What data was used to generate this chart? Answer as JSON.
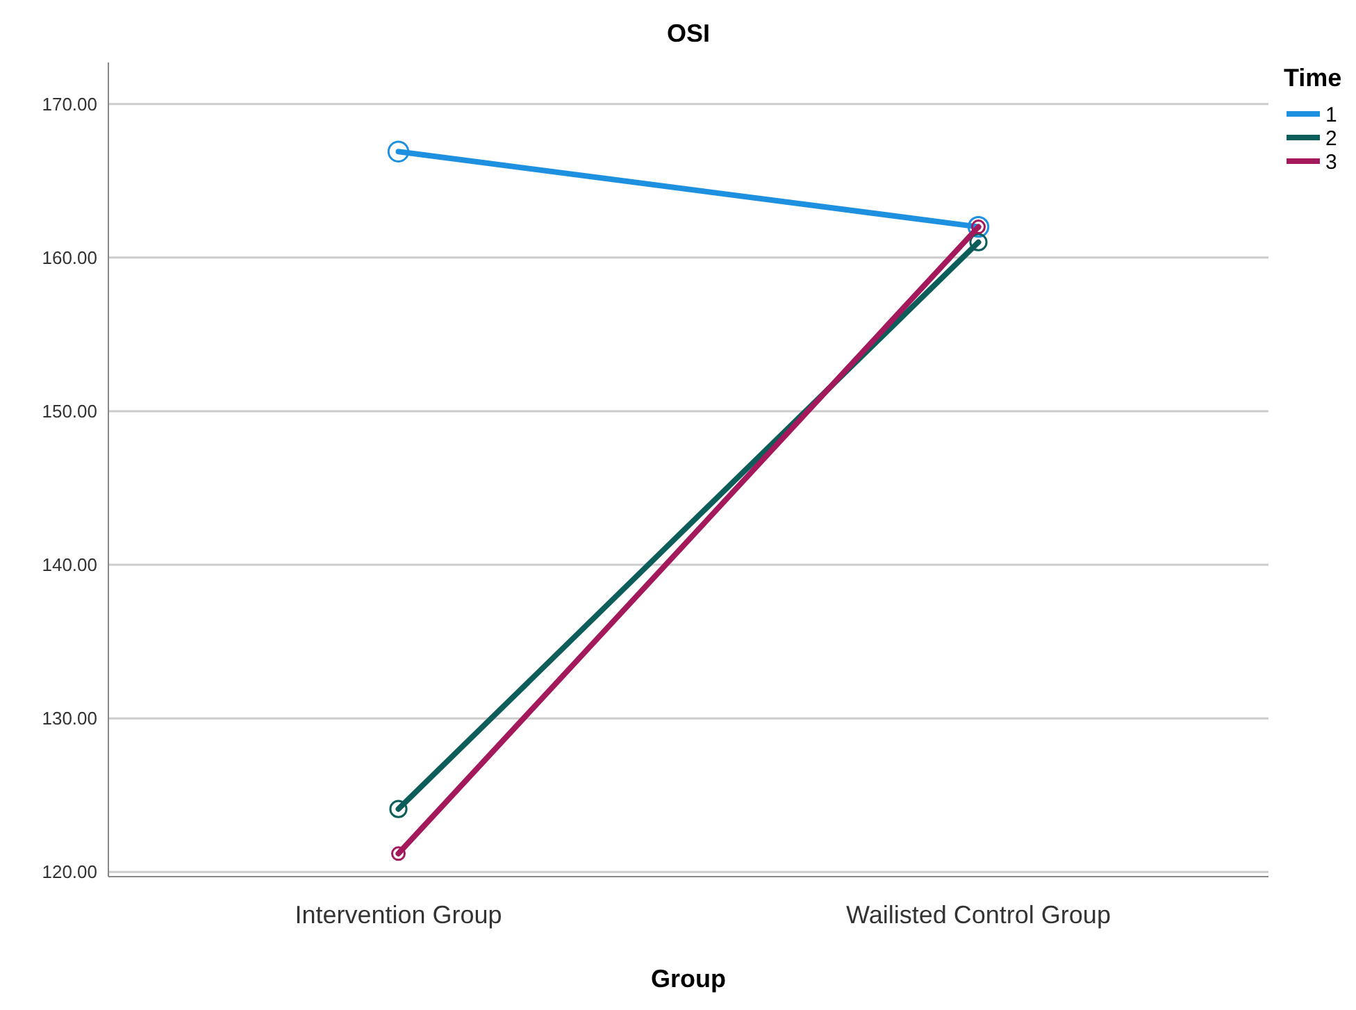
{
  "chart_data": {
    "type": "line",
    "title": "OSI",
    "xlabel": "Group",
    "legend_title": "Time",
    "categories": [
      "Intervention Group",
      "Wailisted Control Group"
    ],
    "series": [
      {
        "name": "1",
        "color": "#1e90e0",
        "values": [
          166.9,
          162.0
        ]
      },
      {
        "name": "2",
        "color": "#0d5e5a",
        "values": [
          124.1,
          161.0
        ]
      },
      {
        "name": "3",
        "color": "#a3195b",
        "values": [
          121.2,
          162.0
        ]
      }
    ],
    "ylim": [
      119.7,
      172.7
    ],
    "yticks": [
      {
        "value": 120,
        "label": "120.00"
      },
      {
        "value": 130,
        "label": "130.00"
      },
      {
        "value": 140,
        "label": "140.00"
      },
      {
        "value": 150,
        "label": "150.00"
      },
      {
        "value": 160,
        "label": "160.00"
      },
      {
        "value": 170,
        "label": "170.00"
      }
    ],
    "grid": "y",
    "legend": "top right",
    "marker": "circle",
    "line_style": "solid"
  }
}
